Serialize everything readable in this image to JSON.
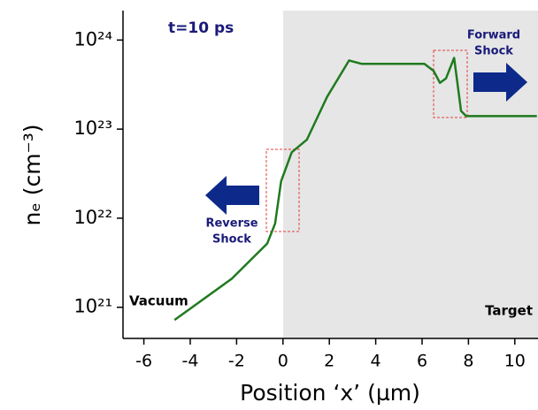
{
  "chart_data": {
    "type": "line",
    "xlabel": "Position ‘x’ (µm)",
    "ylabel": "nₑ (cm⁻³)",
    "annotations": {
      "time": "t=10 ps",
      "forward": [
        "Forward",
        "Shock"
      ],
      "reverse": [
        "Reverse",
        "Shock"
      ],
      "vacuum": "Vacuum",
      "target": "Target"
    },
    "x": [
      -4.68,
      -2.2,
      -0.68,
      -0.34,
      -0.08,
      0.38,
      1.03,
      1.9,
      2.85,
      3.4,
      6.1,
      6.5,
      6.77,
      7.03,
      7.38,
      7.53,
      7.68,
      7.9,
      10.95
    ],
    "values": [
      7.2e+20,
      2.1e+21,
      5.2e+21,
      8.7e+21,
      2.6e+22,
      5.5e+22,
      7.6e+22,
      2.3e+23,
      5.9e+23,
      5.4e+23,
      5.4e+23,
      4.5e+23,
      3.3e+23,
      3.7e+23,
      6.3e+23,
      3.2e+23,
      1.6e+23,
      1.4e+23,
      1.4e+23
    ],
    "color": "#1f7a1f",
    "xlim": [
      -6.9,
      11
    ],
    "xticks": [
      {
        "value": -6,
        "label": "-6"
      },
      {
        "value": -4,
        "label": "-4"
      },
      {
        "value": -2,
        "label": "-2"
      },
      0,
      2,
      4,
      6,
      8,
      10
    ],
    "ylim": [
      4.47e+20,
      2.14e+24
    ],
    "yticks": [
      {
        "value": 1e+21,
        "label": "10²¹"
      },
      {
        "value": 1e+22,
        "label": "10²²"
      },
      {
        "value": 1e+23,
        "label": "10²³"
      },
      {
        "value": 1e+24,
        "label": "10²⁴"
      }
    ],
    "ylog": true
  }
}
